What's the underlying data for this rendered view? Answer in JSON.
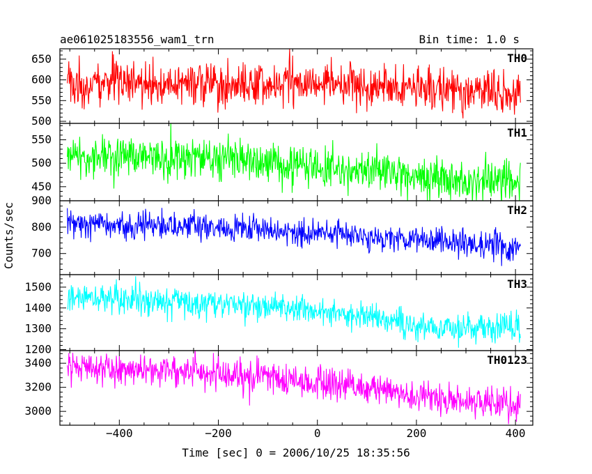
{
  "header": {
    "title": "ae061025183556_wam1_trn",
    "bin_time": "Bin time: 1.0 s"
  },
  "axes": {
    "xlabel": "Time [sec] 0 = 2006/10/25 18:35:56",
    "ylabel": "Counts/sec"
  },
  "chart_data": {
    "type": "line",
    "title": "ae061025183556_wam1_trn",
    "subtitle": "Bin time: 1.0 s",
    "xlabel": "Time [sec] 0 = 2006/10/25 18:35:56",
    "ylabel": "Counts/sec",
    "xlim": [
      -505,
      410
    ],
    "x_axis_range": [
      -520,
      435
    ],
    "xticks": [
      -400,
      -200,
      0,
      200,
      400
    ],
    "xticklabels": [
      "−400",
      "−200",
      "0",
      "200",
      "400"
    ],
    "bin_seconds": 1.0,
    "panels": [
      {
        "name": "TH0",
        "color": "#ff0000",
        "ylim": [
          495,
          675
        ],
        "yticks": [
          500,
          550,
          600,
          650
        ],
        "yticklabels": [
          "500",
          "550",
          "600",
          "650"
        ],
        "trend": [
          [
            -505,
            590
          ],
          [
            0,
            593
          ],
          [
            200,
            580
          ],
          [
            410,
            568
          ]
        ],
        "noise_sd": 26
      },
      {
        "name": "TH1",
        "color": "#00ff00",
        "ylim": [
          420,
          585
        ],
        "yticks": [
          450,
          500,
          550
        ],
        "yticklabels": [
          "450",
          "500",
          "550"
        ],
        "trend": [
          [
            -505,
            515
          ],
          [
            -100,
            505
          ],
          [
            0,
            490
          ],
          [
            200,
            470
          ],
          [
            410,
            460
          ]
        ],
        "noise_sd": 22
      },
      {
        "name": "TH2",
        "color": "#0000ff",
        "ylim": [
          620,
          900
        ],
        "yticks": [
          700,
          800,
          900
        ],
        "yticklabels": [
          "700",
          "800",
          "900"
        ],
        "trend": [
          [
            -505,
            815
          ],
          [
            -200,
            800
          ],
          [
            0,
            780
          ],
          [
            200,
            750
          ],
          [
            410,
            720
          ]
        ],
        "noise_sd": 26
      },
      {
        "name": "TH3",
        "color": "#00ffff",
        "ylim": [
          1195,
          1560
        ],
        "yticks": [
          1200,
          1300,
          1400,
          1500
        ],
        "yticklabels": [
          "1200",
          "1300",
          "1400",
          "1500"
        ],
        "trend": [
          [
            -505,
            1455
          ],
          [
            -200,
            1420
          ],
          [
            0,
            1390
          ],
          [
            200,
            1320
          ],
          [
            410,
            1300
          ]
        ],
        "noise_sd": 35
      },
      {
        "name": "TH0123",
        "color": "#ff00ff",
        "ylim": [
          2885,
          3505
        ],
        "yticks": [
          3000,
          3200,
          3400
        ],
        "yticklabels": [
          "3000",
          "3200",
          "3400"
        ],
        "trend": [
          [
            -505,
            3370
          ],
          [
            -200,
            3320
          ],
          [
            0,
            3250
          ],
          [
            200,
            3130
          ],
          [
            410,
            3050
          ]
        ],
        "noise_sd": 65
      }
    ]
  }
}
